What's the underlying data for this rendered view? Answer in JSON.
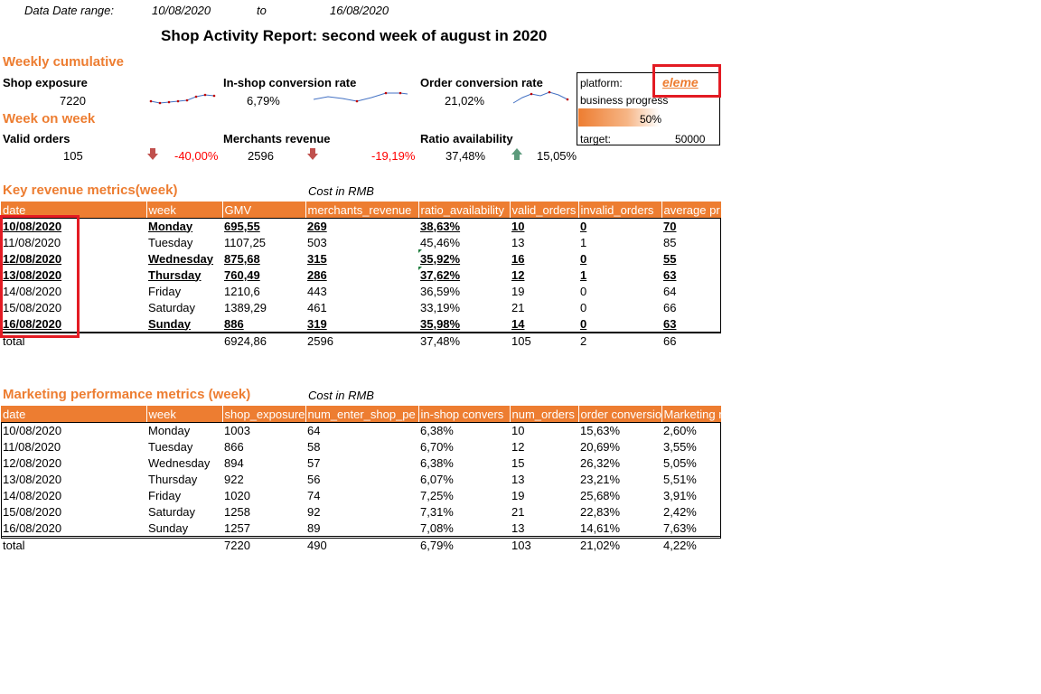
{
  "header": {
    "date_range_label": "Data Date range:",
    "start_date": "10/08/2020",
    "to_label": "to",
    "end_date": "16/08/2020",
    "title": "Shop Activity Report: second week of august in 2020"
  },
  "weekly": {
    "section_title": "Weekly cumulative",
    "kpis": [
      {
        "label": "Shop exposure",
        "value": "7220"
      },
      {
        "label": "In-shop conversion rate",
        "value": "6,79%"
      },
      {
        "label": "Order conversion rate",
        "value": "21,02%"
      }
    ]
  },
  "wow": {
    "section_title": "Week on week",
    "kpis": [
      {
        "label": "Valid orders",
        "value": "105",
        "change": "-40,00%",
        "direction": "down"
      },
      {
        "label": "Merchants revenue",
        "value": "2596",
        "change": "-19,19%",
        "direction": "down"
      },
      {
        "label": "Ratio availability",
        "value": "37,48%",
        "change": "15,05%",
        "direction": "up"
      }
    ]
  },
  "platform": {
    "label": "platform:",
    "value": "eleme",
    "progress_label": "business progress",
    "progress_value": "50%",
    "progress_fraction": 0.5,
    "target_label": "target:",
    "target_value": "50000"
  },
  "revenue": {
    "title": "Key revenue metrics(week)",
    "cost_note": "Cost in RMB",
    "columns": [
      "date",
      "week",
      "GMV",
      "merchants_revenue",
      "ratio_availability",
      "valid_orders",
      "invalid_orders",
      "average pr"
    ],
    "rows": [
      {
        "date": "10/08/2020",
        "week": "Monday",
        "gmv": "695,55",
        "rev": "269",
        "ratio": "38,63%",
        "valid": "10",
        "invalid": "0",
        "avg": "70",
        "bold": true
      },
      {
        "date": "11/08/2020",
        "week": "Tuesday",
        "gmv": "1107,25",
        "rev": "503",
        "ratio": "45,46%",
        "valid": "13",
        "invalid": "1",
        "avg": "85",
        "bold": false
      },
      {
        "date": "12/08/2020",
        "week": "Wednesday",
        "gmv": "875,68",
        "rev": "315",
        "ratio": "35,92%",
        "valid": "16",
        "invalid": "0",
        "avg": "55",
        "bold": true
      },
      {
        "date": "13/08/2020",
        "week": "Thursday",
        "gmv": "760,49",
        "rev": "286",
        "ratio": "37,62%",
        "valid": "12",
        "invalid": "1",
        "avg": "63",
        "bold": true
      },
      {
        "date": "14/08/2020",
        "week": "Friday",
        "gmv": "1210,6",
        "rev": "443",
        "ratio": "36,59%",
        "valid": "19",
        "invalid": "0",
        "avg": "64",
        "bold": false
      },
      {
        "date": "15/08/2020",
        "week": "Saturday",
        "gmv": "1389,29",
        "rev": "461",
        "ratio": "33,19%",
        "valid": "21",
        "invalid": "0",
        "avg": "66",
        "bold": false
      },
      {
        "date": "16/08/2020",
        "week": "Sunday",
        "gmv": "886",
        "rev": "319",
        "ratio": "35,98%",
        "valid": "14",
        "invalid": "0",
        "avg": "63",
        "bold": true
      }
    ],
    "total": {
      "date": "total",
      "week": "",
      "gmv": "6924,86",
      "rev": "2596",
      "ratio": "37,48%",
      "valid": "105",
      "invalid": "2",
      "avg": "66"
    }
  },
  "marketing": {
    "title": "Marketing performance metrics (week)",
    "cost_note": "Cost in RMB",
    "columns": [
      "date",
      "week",
      "shop_exposure",
      "num_enter_shop_pe",
      "in-shop convers",
      "num_orders",
      "order conversio",
      "Marketing r"
    ],
    "rows": [
      {
        "date": "10/08/2020",
        "week": "Monday",
        "exp": "1003",
        "enter": "64",
        "insh": "6,38%",
        "orders": "10",
        "oconv": "15,63%",
        "mkt": "2,60%"
      },
      {
        "date": "11/08/2020",
        "week": "Tuesday",
        "exp": "866",
        "enter": "58",
        "insh": "6,70%",
        "orders": "12",
        "oconv": "20,69%",
        "mkt": "3,55%"
      },
      {
        "date": "12/08/2020",
        "week": "Wednesday",
        "exp": "894",
        "enter": "57",
        "insh": "6,38%",
        "orders": "15",
        "oconv": "26,32%",
        "mkt": "5,05%"
      },
      {
        "date": "13/08/2020",
        "week": "Thursday",
        "exp": "922",
        "enter": "56",
        "insh": "6,07%",
        "orders": "13",
        "oconv": "23,21%",
        "mkt": "5,51%"
      },
      {
        "date": "14/08/2020",
        "week": "Friday",
        "exp": "1020",
        "enter": "74",
        "insh": "7,25%",
        "orders": "19",
        "oconv": "25,68%",
        "mkt": "3,91%"
      },
      {
        "date": "15/08/2020",
        "week": "Saturday",
        "exp": "1258",
        "enter": "92",
        "insh": "7,31%",
        "orders": "21",
        "oconv": "22,83%",
        "mkt": "2,42%"
      },
      {
        "date": "16/08/2020",
        "week": "Sunday",
        "exp": "1257",
        "enter": "89",
        "insh": "7,08%",
        "orders": "13",
        "oconv": "14,61%",
        "mkt": "7,63%"
      }
    ],
    "total": {
      "date": "total",
      "week": "",
      "exp": "7220",
      "enter": "490",
      "insh": "6,79%",
      "orders": "103",
      "oconv": "21,02%",
      "mkt": "4,22%"
    }
  },
  "colors": {
    "accent": "#ED7D31",
    "negative": "#FF0000",
    "highlight": "#E31B23",
    "down_arrow": "#C0504D",
    "up_arrow": "#5B9A7B"
  }
}
